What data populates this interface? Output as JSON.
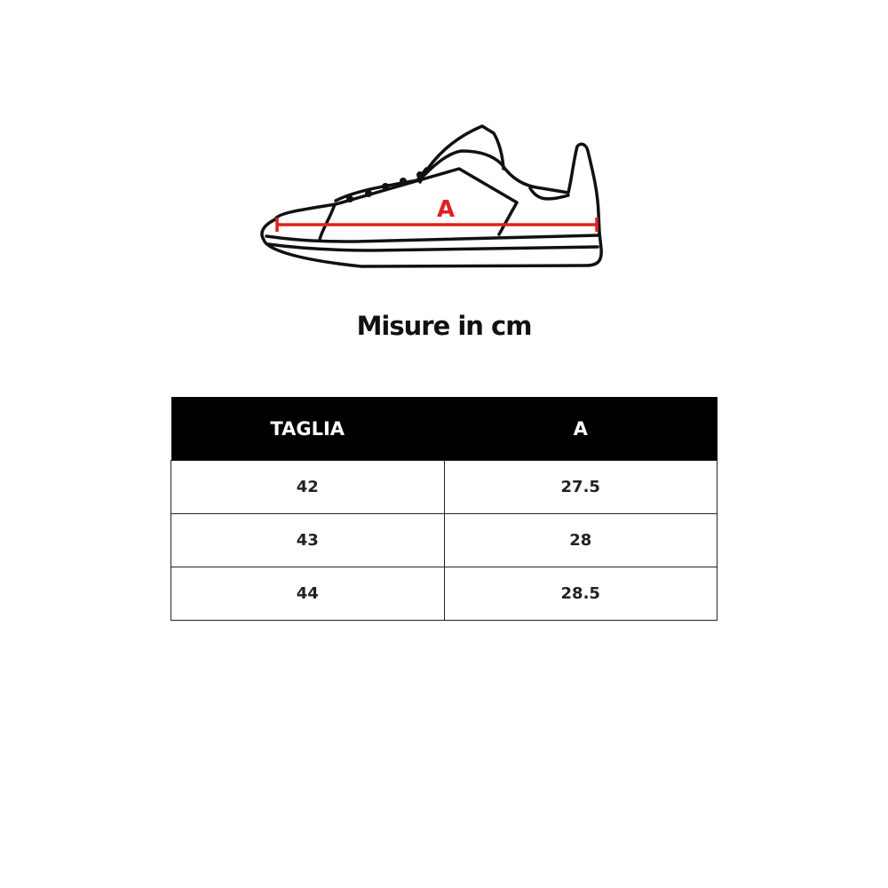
{
  "diagram": {
    "measure_label": "A",
    "measure_color": "#e02020"
  },
  "title": "Misure in cm",
  "table": {
    "headers": [
      "TAGLIA",
      "A"
    ],
    "rows": [
      [
        "42",
        "27.5"
      ],
      [
        "43",
        "28"
      ],
      [
        "44",
        "28.5"
      ]
    ]
  }
}
